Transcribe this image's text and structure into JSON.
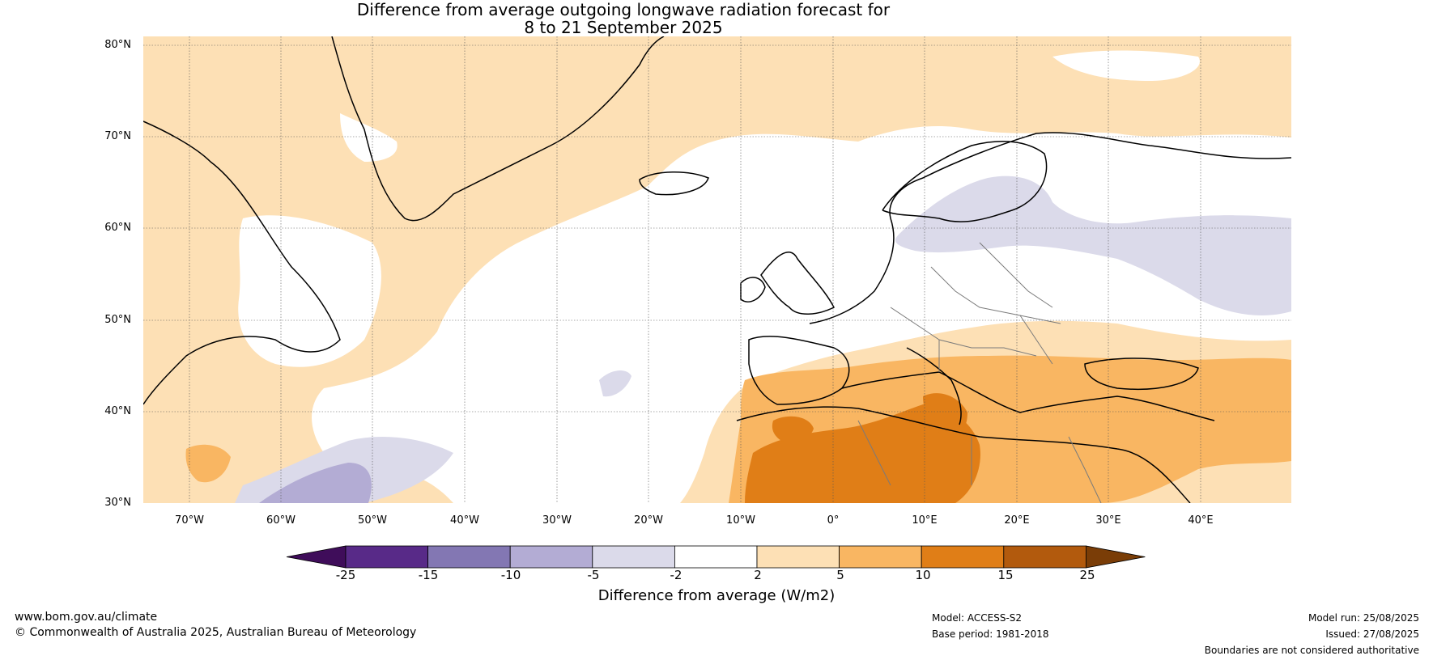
{
  "title_line1": "Difference from average outgoing longwave radiation forecast for",
  "title_line2": "8 to 21 September 2025",
  "lat_labels": [
    "80°N",
    "70°N",
    "60°N",
    "50°N",
    "40°N",
    "30°N"
  ],
  "lon_labels": [
    "70°W",
    "60°W",
    "50°W",
    "40°W",
    "30°W",
    "20°W",
    "10°W",
    "0°",
    "10°E",
    "20°E",
    "30°E",
    "40°E"
  ],
  "colorbar": {
    "labels": [
      "-25",
      "-15",
      "-10",
      "-5",
      "-2",
      "2",
      "5",
      "10",
      "15",
      "25"
    ],
    "colors": [
      "#3f0d5a",
      "#582a88",
      "#8377b3",
      "#b3acd4",
      "#dbdaea",
      "#ffffff",
      "#fde0b5",
      "#f9b662",
      "#e07e17",
      "#b25a0d",
      "#7a3d07"
    ],
    "title": "Difference from average (W/m2)"
  },
  "footer": {
    "website": "www.bom.gov.au/climate",
    "copyright": "© Commonwealth of Australia 2025, Australian Bureau of Meteorology",
    "model": "Model: ACCESS-S2",
    "base_period": "Base period: 1981-2018",
    "model_run": "Model run: 25/08/2025",
    "issued": "Issued: 27/08/2025",
    "disclaimer": "Boundaries are not considered authoritative"
  }
}
